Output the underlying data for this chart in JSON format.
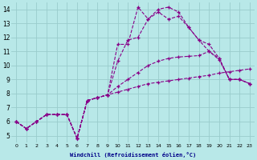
{
  "xlabel": "Windchill (Refroidissement éolien,°C)",
  "background_color": "#b8e8e8",
  "grid_color": "#99cccc",
  "line_color": "#880088",
  "xlim": [
    -0.5,
    23.5
  ],
  "ylim": [
    4.5,
    14.5
  ],
  "xticks": [
    0,
    1,
    2,
    3,
    4,
    5,
    6,
    7,
    8,
    9,
    10,
    11,
    12,
    13,
    14,
    15,
    16,
    17,
    18,
    19,
    20,
    21,
    22,
    23
  ],
  "yticks": [
    5,
    6,
    7,
    8,
    9,
    10,
    11,
    12,
    13,
    14
  ],
  "series": [
    [
      6.0,
      5.5,
      6.0,
      6.5,
      6.5,
      6.5,
      4.8,
      7.5,
      7.7,
      7.9,
      8.1,
      8.3,
      8.5,
      8.7,
      8.8,
      8.9,
      9.0,
      9.1,
      9.2,
      9.3,
      9.45,
      9.55,
      9.65,
      9.75
    ],
    [
      6.0,
      5.5,
      6.0,
      6.5,
      6.5,
      6.5,
      4.8,
      7.5,
      7.7,
      7.9,
      8.5,
      9.0,
      9.5,
      10.0,
      10.3,
      10.5,
      10.6,
      10.65,
      10.7,
      11.0,
      10.4,
      9.0,
      9.0,
      8.7
    ],
    [
      6.0,
      5.5,
      6.0,
      6.5,
      6.5,
      6.5,
      4.8,
      7.5,
      7.7,
      7.9,
      10.3,
      11.8,
      12.0,
      13.3,
      14.0,
      14.15,
      13.8,
      12.7,
      11.8,
      11.0,
      10.5,
      9.0,
      9.0,
      8.7
    ],
    [
      6.0,
      5.5,
      6.0,
      6.5,
      6.5,
      6.5,
      4.8,
      7.5,
      7.7,
      7.9,
      11.5,
      11.5,
      14.15,
      13.3,
      13.8,
      13.3,
      13.5,
      12.7,
      11.8,
      11.5,
      10.5,
      9.0,
      9.0,
      8.7
    ]
  ]
}
